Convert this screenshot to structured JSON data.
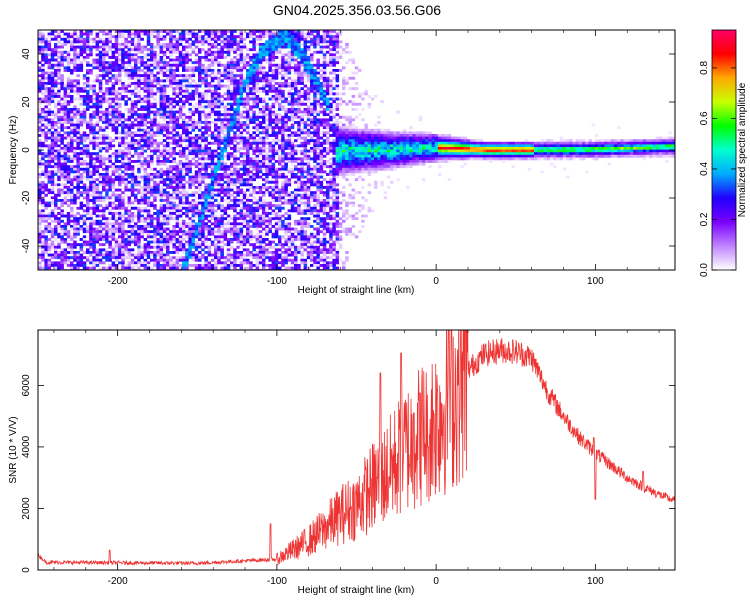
{
  "title": "GN04.2025.356.03.56.G06",
  "chart_data": [
    {
      "type": "heatmap",
      "xlabel": "Height of straight line (km)",
      "ylabel": "Frequency (Hz)",
      "xlim": [
        -250,
        150
      ],
      "ylim": [
        -50,
        50
      ],
      "xticks": [
        -200,
        -100,
        0,
        100
      ],
      "yticks": [
        -40,
        -20,
        0,
        20,
        40
      ],
      "colorbar": {
        "label": "Normalized spectral amplitude",
        "range": [
          0,
          0.95
        ],
        "ticks": [
          0.0,
          0.2,
          0.4,
          0.6,
          0.8
        ],
        "colors": [
          "#ffffff",
          "#c084ff",
          "#7a00ff",
          "#2000ff",
          "#00aaff",
          "#00ffd0",
          "#00ff00",
          "#c8ff00",
          "#ffaa00",
          "#ff0000",
          "#ff0066"
        ]
      },
      "features": {
        "noise_region_x": [
          -250,
          -62
        ],
        "arc_trace": [
          [
            -160,
            -50
          ],
          [
            -150,
            -30
          ],
          [
            -140,
            -10
          ],
          [
            -130,
            10
          ],
          [
            -120,
            30
          ],
          [
            -110,
            42
          ],
          [
            -95,
            48
          ],
          [
            -85,
            40
          ],
          [
            -75,
            28
          ],
          [
            -68,
            18
          ]
        ],
        "carrier_line": [
          [
            -65,
            0
          ],
          [
            -30,
            0.5
          ],
          [
            0,
            1.5
          ],
          [
            30,
            0.5
          ],
          [
            60,
            0.5
          ],
          [
            100,
            0.8
          ],
          [
            150,
            2
          ]
        ]
      }
    },
    {
      "type": "line",
      "xlabel": "Height of straight line (km)",
      "ylabel": "SNR (10 * V/V)",
      "xlim": [
        -250,
        150
      ],
      "ylim": [
        0,
        7800
      ],
      "xticks": [
        -200,
        -100,
        0,
        100
      ],
      "yticks": [
        0,
        2000,
        4000,
        6000
      ],
      "color": "#ee3333",
      "envelope": [
        [
          -250,
          500
        ],
        [
          -245,
          250
        ],
        [
          -150,
          220
        ],
        [
          -100,
          350
        ],
        [
          -90,
          650
        ],
        [
          -80,
          950
        ],
        [
          -70,
          1350
        ],
        [
          -60,
          1800
        ],
        [
          -50,
          2100
        ],
        [
          -40,
          2700
        ],
        [
          -30,
          3200
        ],
        [
          -20,
          3900
        ],
        [
          -10,
          4400
        ],
        [
          0,
          4900
        ],
        [
          10,
          5600
        ],
        [
          20,
          6500
        ],
        [
          30,
          7000
        ],
        [
          40,
          7150
        ],
        [
          50,
          7100
        ],
        [
          60,
          6900
        ],
        [
          70,
          5800
        ],
        [
          80,
          5000
        ],
        [
          90,
          4300
        ],
        [
          100,
          3800
        ],
        [
          110,
          3400
        ],
        [
          120,
          3000
        ],
        [
          130,
          2700
        ],
        [
          140,
          2450
        ],
        [
          150,
          2250
        ]
      ],
      "spikes": [
        [
          -205,
          640
        ],
        [
          -104,
          1500
        ],
        [
          -35,
          6400
        ],
        [
          -22,
          7050
        ],
        [
          -14,
          5100
        ],
        [
          -5,
          4000
        ],
        [
          8,
          7800
        ],
        [
          99,
          4300
        ],
        [
          100,
          2300
        ],
        [
          130,
          3200
        ]
      ]
    }
  ]
}
